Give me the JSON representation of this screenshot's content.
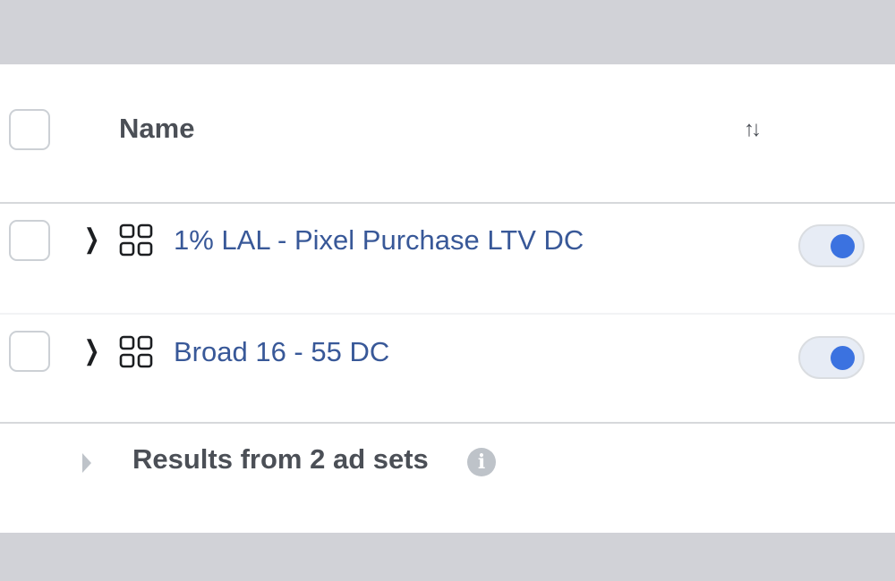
{
  "header": {
    "name_label": "Name",
    "sort_icon": "sort-arrows-icon",
    "sort_glyph": "↑↓"
  },
  "rows": [
    {
      "name": "1% LAL - Pixel Purchase LTV DC",
      "status_on": true
    },
    {
      "name": "Broad 16 - 55 DC",
      "status_on": true
    }
  ],
  "footer": {
    "results_label": "Results from 2 ad sets",
    "info_glyph": "i"
  },
  "colors": {
    "link": "#385898",
    "toggle_on": "#3b72e0",
    "band": "#d1d2d7"
  }
}
